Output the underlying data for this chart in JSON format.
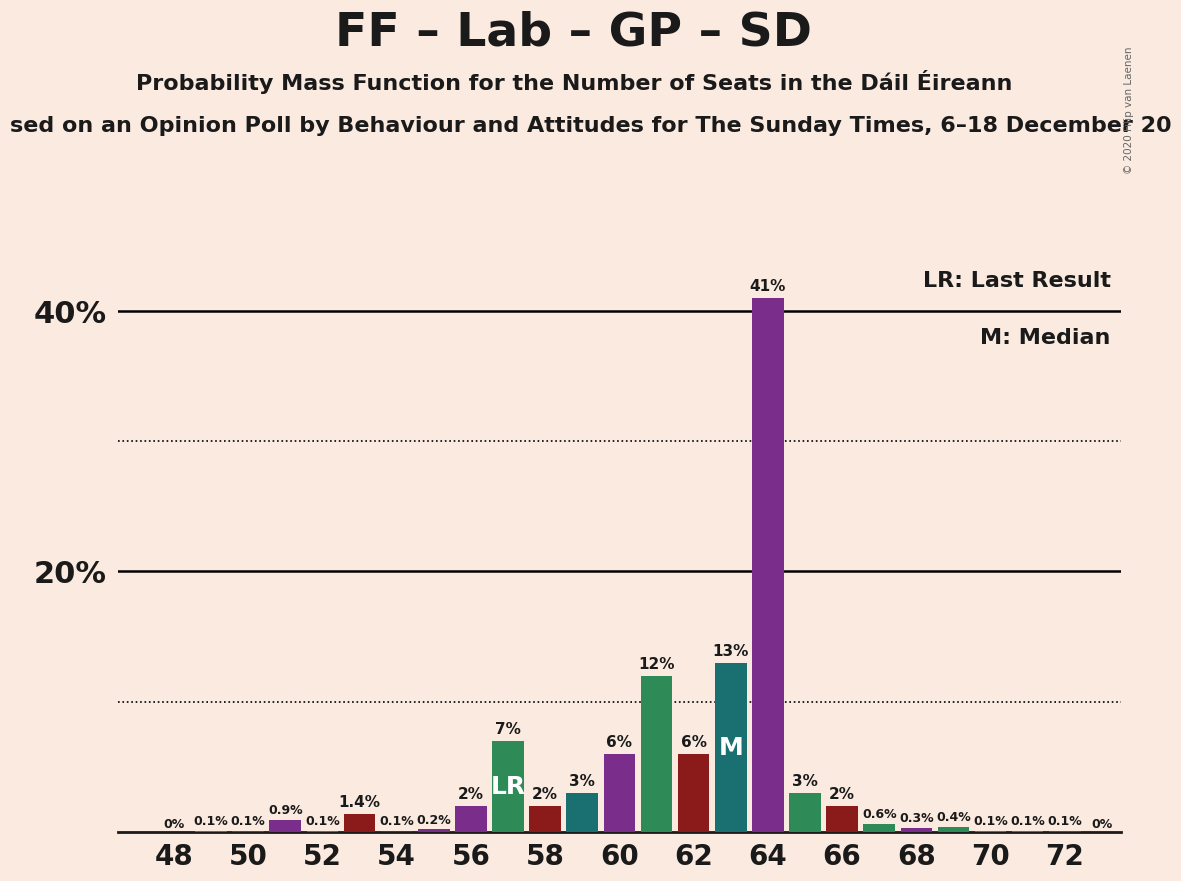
{
  "title": "FF – Lab – GP – SD",
  "subtitle": "Probability Mass Function for the Number of Seats in the Dáil Éireann",
  "subtitle2": "sed on an Opinion Poll by Behaviour and Attitudes for The Sunday Times, 6–18 December 20",
  "copyright": "© 2020 Filip van Laenen",
  "background_color": "#faeae0",
  "legend_lr": "LR: Last Result",
  "legend_m": "M: Median",
  "bar_data": [
    [
      48,
      0.0,
      "#2e8b57",
      "0%",
      null
    ],
    [
      49,
      0.1,
      "#2e8b57",
      "0.1%",
      null
    ],
    [
      50,
      0.1,
      "#7b2d8b",
      "0.1%",
      null
    ],
    [
      51,
      0.9,
      "#7b2d8b",
      "0.9%",
      null
    ],
    [
      52,
      0.1,
      "#2e8b57",
      "0.1%",
      null
    ],
    [
      53,
      1.4,
      "#8b1a1a",
      "1.4%",
      null
    ],
    [
      54,
      0.1,
      "#8b1a1a",
      "0.1%",
      null
    ],
    [
      55,
      0.2,
      "#7b2d8b",
      "0.2%",
      null
    ],
    [
      56,
      2.0,
      "#7b2d8b",
      "2%",
      null
    ],
    [
      57,
      7.0,
      "#2e8b57",
      "7%",
      "LR"
    ],
    [
      58,
      2.0,
      "#8b1a1a",
      "2%",
      null
    ],
    [
      59,
      3.0,
      "#1a7070",
      "3%",
      null
    ],
    [
      60,
      6.0,
      "#7b2d8b",
      "6%",
      null
    ],
    [
      61,
      12.0,
      "#2e8b57",
      "12%",
      null
    ],
    [
      62,
      6.0,
      "#8b1a1a",
      "6%",
      null
    ],
    [
      63,
      13.0,
      "#1a7070",
      "13%",
      "M"
    ],
    [
      64,
      41.0,
      "#7b2d8b",
      "41%",
      null
    ],
    [
      65,
      3.0,
      "#2e8b57",
      "3%",
      null
    ],
    [
      66,
      2.0,
      "#8b1a1a",
      "2%",
      null
    ],
    [
      67,
      0.6,
      "#2e8b57",
      "0.6%",
      null
    ],
    [
      68,
      0.3,
      "#7b2d8b",
      "0.3%",
      null
    ],
    [
      69,
      0.4,
      "#2e8b57",
      "0.4%",
      null
    ],
    [
      70,
      0.1,
      "#2e8b57",
      "0.1%",
      null
    ],
    [
      71,
      0.1,
      "#2e8b57",
      "0.1%",
      null
    ],
    [
      72,
      0.1,
      "#7b2d8b",
      "0.1%",
      null
    ],
    [
      73,
      0.0,
      "#2e8b57",
      "0%",
      null
    ]
  ],
  "dotted_lines": [
    10,
    30
  ],
  "solid_lines": [
    20,
    40
  ],
  "ylim": [
    0,
    44
  ],
  "xlim": [
    46.5,
    73.5
  ],
  "xtick_positions": [
    48,
    50,
    52,
    54,
    56,
    58,
    60,
    62,
    64,
    66,
    68,
    70,
    72
  ],
  "bar_width": 0.85,
  "title_fontsize": 34,
  "subtitle_fontsize": 16,
  "subtitle2_fontsize": 16,
  "ytick_fontsize": 22,
  "xtick_fontsize": 20,
  "bar_label_fontsize_large": 11,
  "bar_label_fontsize_small": 9,
  "special_label_fontsize": 18,
  "legend_fontsize": 16
}
